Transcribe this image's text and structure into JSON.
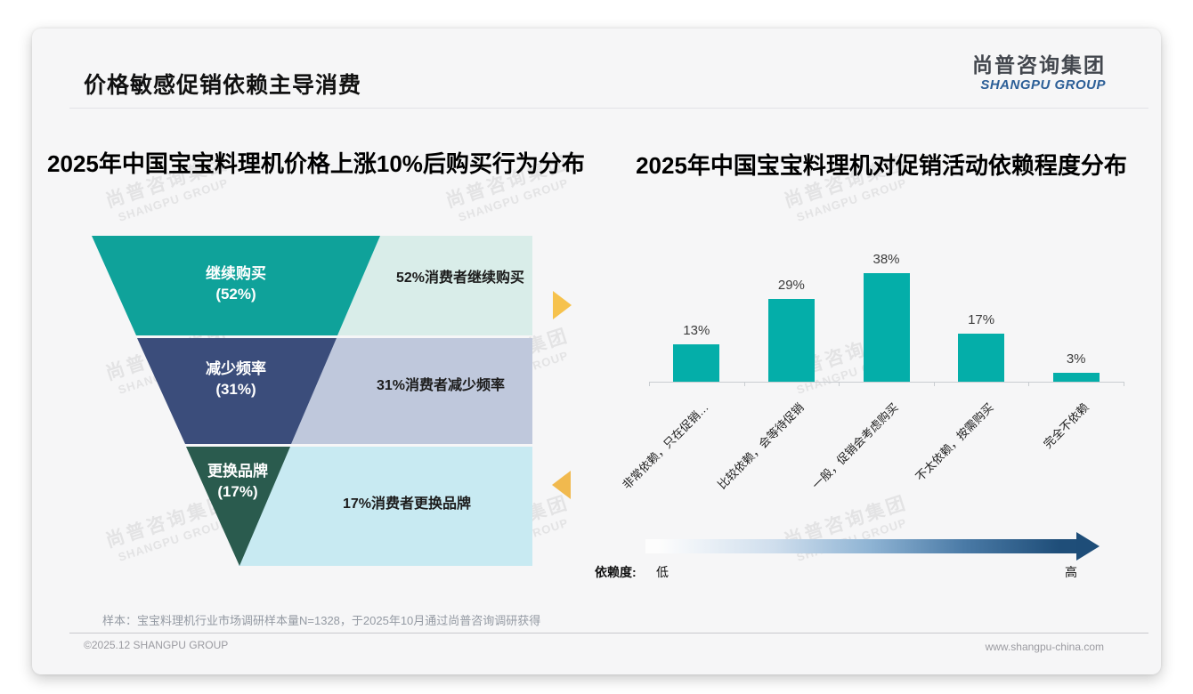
{
  "page": {
    "title": "价格敏感促销依赖主导消费",
    "logo": {
      "cn": "尚普咨询集团",
      "en": "SHANGPU GROUP"
    },
    "watermark": {
      "cn": "尚普咨询集团",
      "en": "SHANGPU GROUP"
    },
    "footer": {
      "note": "样本：宝宝料理机行业市场调研样本量N=1328，于2025年10月通过尚普咨询调研获得",
      "copyright": "©2025.12 SHANGPU GROUP",
      "website": "www.shangpu-china.com"
    }
  },
  "chart_data": [
    {
      "type": "funnel",
      "title": "2025年中国宝宝料理机价格上涨10%后购买行为分布",
      "segments": [
        {
          "label": "继续购买",
          "value": 52,
          "pct_label": "(52%)",
          "annotation": "52%消费者继续购买",
          "color": "#0fa29a",
          "panel_color": "#d9ede9"
        },
        {
          "label": "减少频率",
          "value": 31,
          "pct_label": "(31%)",
          "annotation": "31%消费者减少频率",
          "color": "#3b4d7b",
          "panel_color": "#bfc8dc"
        },
        {
          "label": "更换品牌",
          "value": 17,
          "pct_label": "(17%)",
          "annotation": "17%消费者更换品牌",
          "color": "#2a5b4e",
          "panel_color": "#c8eaf2"
        }
      ],
      "pointer_colors": {
        "right": "#f6c24d",
        "left": "#f1b94e"
      }
    },
    {
      "type": "bar",
      "title": "2025年中国宝宝料理机对促销活动依赖程度分布",
      "categories": [
        "非常依赖，只在促销…",
        "比较依赖，会等待促销",
        "一般，促销会考虑购买",
        "不太依赖，按需购买",
        "完全不依赖"
      ],
      "values": [
        13,
        29,
        38,
        17,
        3
      ],
      "value_labels": [
        "13%",
        "29%",
        "38%",
        "17%",
        "3%"
      ],
      "bar_color": "#04aea9",
      "ylim": [
        0,
        40
      ],
      "grid": false,
      "legend": false,
      "x_axis_annotation": {
        "label": "依赖度:",
        "low": "低",
        "high": "高"
      },
      "arrow_gradient": {
        "start": "#ffffff",
        "end": "#1f4e79"
      }
    }
  ]
}
